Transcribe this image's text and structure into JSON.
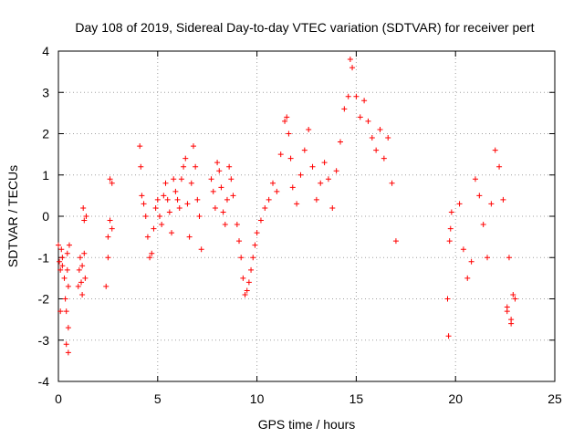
{
  "chart_data": {
    "type": "scatter",
    "title": "Day 108 of 2019, Sidereal Day-to-day VTEC variation (SDTVAR) for receiver pert",
    "xlabel": "GPS time / hours",
    "ylabel": "SDTVAR / TECUs",
    "xlim": [
      0,
      25
    ],
    "ylim": [
      -4,
      4
    ],
    "xticks": [
      0,
      5,
      10,
      15,
      20,
      25
    ],
    "yticks": [
      -4,
      -3,
      -2,
      -1,
      0,
      1,
      2,
      3,
      4
    ],
    "grid": true,
    "marker": "+",
    "color": "#ff0000",
    "series": [
      {
        "name": "SDTVAR",
        "x": [
          0.0,
          0.05,
          0.1,
          0.1,
          0.15,
          0.2,
          0.2,
          0.3,
          0.35,
          0.4,
          0.4,
          0.45,
          0.45,
          0.5,
          0.5,
          0.55,
          0.5,
          1.0,
          1.05,
          1.1,
          1.15,
          1.2,
          1.25,
          1.3,
          1.2,
          1.3,
          1.35,
          1.4,
          2.4,
          2.5,
          2.6,
          2.7,
          2.6,
          2.7,
          2.5,
          4.1,
          4.15,
          4.2,
          4.3,
          4.4,
          4.5,
          4.6,
          4.7,
          4.8,
          4.9,
          5.0,
          5.1,
          5.2,
          5.3,
          5.4,
          5.5,
          5.6,
          5.7,
          5.8,
          5.9,
          6.0,
          6.1,
          6.2,
          6.3,
          6.4,
          6.5,
          6.6,
          6.7,
          6.8,
          6.9,
          7.0,
          7.1,
          7.2,
          7.7,
          7.8,
          7.9,
          8.0,
          8.1,
          8.2,
          8.3,
          8.4,
          8.5,
          8.6,
          8.7,
          8.8,
          9.0,
          9.1,
          9.2,
          9.3,
          9.4,
          9.5,
          9.6,
          9.7,
          9.8,
          9.9,
          10.0,
          10.2,
          10.4,
          10.6,
          10.8,
          11.0,
          11.2,
          11.4,
          11.5,
          11.6,
          11.7,
          11.8,
          12.0,
          12.2,
          12.4,
          12.6,
          12.8,
          13.0,
          13.2,
          13.4,
          13.6,
          13.8,
          14.0,
          14.2,
          14.4,
          14.6,
          14.7,
          14.8,
          15.0,
          15.2,
          15.4,
          15.6,
          15.8,
          16.0,
          16.2,
          16.4,
          16.6,
          16.8,
          17.0,
          19.6,
          19.65,
          19.7,
          19.75,
          19.8,
          20.2,
          20.4,
          20.6,
          20.8,
          21.0,
          21.2,
          21.4,
          21.6,
          21.8,
          22.0,
          22.2,
          22.4,
          22.6,
          22.8,
          23.0,
          22.7,
          22.9,
          22.8,
          22.6
        ],
        "y": [
          -0.7,
          -1.1,
          -1.3,
          -2.3,
          -0.8,
          -1.0,
          -1.2,
          -1.5,
          -2.0,
          -2.3,
          -3.1,
          -0.9,
          -1.3,
          -2.7,
          -1.7,
          -0.7,
          -3.3,
          -1.7,
          -1.3,
          -1.0,
          -1.6,
          -1.9,
          0.2,
          -0.1,
          -1.2,
          -0.9,
          -1.5,
          0.0,
          -1.7,
          -0.5,
          -0.1,
          0.8,
          0.9,
          -0.3,
          -1.0,
          1.7,
          1.2,
          0.5,
          0.3,
          0.0,
          -0.5,
          -1.0,
          -0.9,
          -0.3,
          0.2,
          0.4,
          0.0,
          -0.2,
          0.5,
          0.8,
          0.4,
          0.1,
          -0.4,
          0.9,
          0.6,
          0.4,
          0.2,
          0.9,
          1.2,
          1.4,
          0.3,
          -0.5,
          0.8,
          1.7,
          1.2,
          0.4,
          0.0,
          -0.8,
          0.9,
          0.6,
          0.2,
          1.3,
          1.1,
          0.7,
          0.1,
          -0.2,
          0.4,
          1.2,
          0.9,
          0.5,
          -0.2,
          -0.6,
          -1.0,
          -1.5,
          -1.9,
          -1.8,
          -1.6,
          -1.3,
          -1.0,
          -0.7,
          -0.4,
          -0.1,
          0.2,
          0.4,
          0.8,
          0.6,
          1.5,
          2.3,
          2.4,
          2.0,
          1.4,
          0.7,
          0.3,
          1.0,
          1.6,
          2.1,
          1.2,
          0.4,
          0.8,
          1.3,
          0.9,
          0.2,
          1.1,
          1.8,
          2.6,
          2.9,
          3.8,
          3.6,
          2.9,
          2.4,
          2.8,
          2.3,
          1.9,
          1.6,
          2.1,
          1.4,
          1.9,
          0.8,
          -0.6,
          -2.0,
          -2.9,
          -0.6,
          -0.3,
          0.1,
          0.3,
          -0.8,
          -1.5,
          -1.1,
          0.9,
          0.5,
          -0.2,
          -1.0,
          0.3,
          1.6,
          1.2,
          0.4,
          -2.2,
          -2.5,
          -2.0,
          -1.0,
          -1.9,
          -2.6,
          -2.3
        ]
      }
    ]
  }
}
